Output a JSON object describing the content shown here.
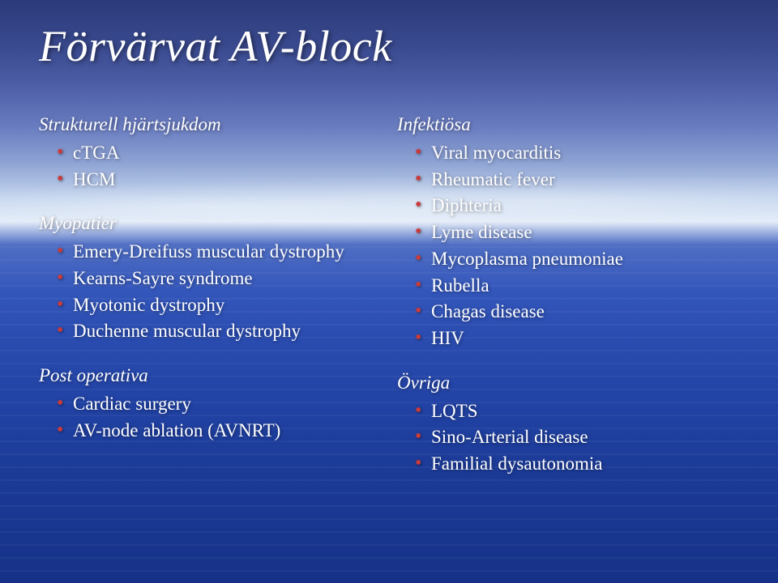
{
  "title": "Förvärvat AV-block",
  "bullet_color": "#c93b3b",
  "text_color": "#ffffff",
  "title_fontsize": 54,
  "body_fontsize": 23,
  "background_gradient": [
    "#2b3a7a",
    "#3a4a8f",
    "#4e5fa8",
    "#6a7dc0",
    "#8fa4d4",
    "#c4d5ee",
    "#e3ecf8",
    "#4f6ec4",
    "#3356bb",
    "#2a4cb0",
    "#2142a4",
    "#1b3a96",
    "#163288"
  ],
  "left": {
    "sections": [
      {
        "head": "Strukturell hjärtsjukdom",
        "items": [
          "cTGA",
          "HCM"
        ]
      },
      {
        "head": "Myopatier",
        "items": [
          "Emery-Dreifuss muscular dystrophy",
          "Kearns-Sayre syndrome",
          "Myotonic dystrophy",
          "Duchenne muscular dystrophy"
        ]
      },
      {
        "head": "Post operativa",
        "items": [
          "Cardiac surgery",
          "AV-node ablation (AVNRT)"
        ]
      }
    ]
  },
  "right": {
    "sections": [
      {
        "head": "Infektiösa",
        "items": [
          "Viral myocarditis",
          "Rheumatic fever",
          "Diphteria",
          "Lyme disease",
          "Mycoplasma pneumoniae",
          "Rubella",
          "Chagas disease",
          "HIV"
        ]
      },
      {
        "head": "Övriga",
        "items": [
          "LQTS",
          "Sino-Arterial disease",
          "Familial dysautonomia"
        ]
      }
    ]
  }
}
